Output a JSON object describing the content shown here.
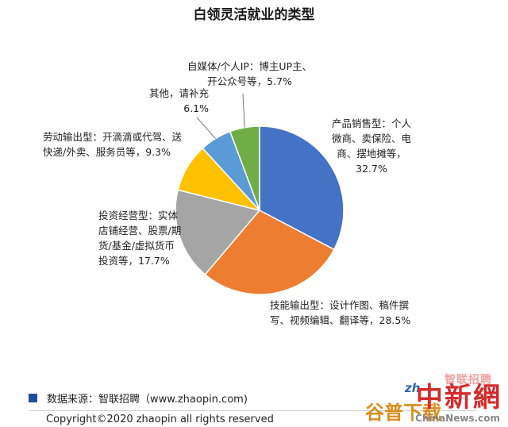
{
  "chart_data": {
    "type": "pie",
    "title": "白领灵活就业的类型",
    "slices": [
      {
        "value": 32.7,
        "color": "#4472c4",
        "label_lines": [
          "产品销售型：个人",
          "微商、卖保险、电",
          "商、摆地摊等，",
          "32.7%"
        ]
      },
      {
        "value": 28.5,
        "color": "#ed7d31",
        "label_lines": [
          "技能输出型：设计作图、稿件撰",
          "写、视频编辑、翻译等，28.5%"
        ]
      },
      {
        "value": 17.7,
        "color": "#a5a5a5",
        "label_lines": [
          "投资经营型：实体",
          "店铺经营、股票/期",
          "货/基金/虚拟货币",
          "投资等，17.7%"
        ]
      },
      {
        "value": 9.3,
        "color": "#ffc000",
        "label_lines": [
          "劳动输出型：开滴滴或代驾、送",
          "快递/外卖、服务员等，9.3%"
        ]
      },
      {
        "value": 6.1,
        "color": "#5b9bd5",
        "label_lines": [
          "其他，请补充",
          "6.1%"
        ]
      },
      {
        "value": 5.7,
        "color": "#70ad47",
        "label_lines": [
          "自媒体/个人IP：博主UP主、",
          "开公众号等，5.7%"
        ]
      }
    ]
  },
  "footer": {
    "source": "数据来源：智联招聘（www.zhaopin.com)",
    "copyright": "Copyright©2020 zhaopin all rights reserved"
  },
  "watermark": {
    "top": "智联招聘",
    "zh": "zh",
    "main": "中新網",
    "site": "ChinaNews.com",
    "dl": "谷普下载"
  }
}
